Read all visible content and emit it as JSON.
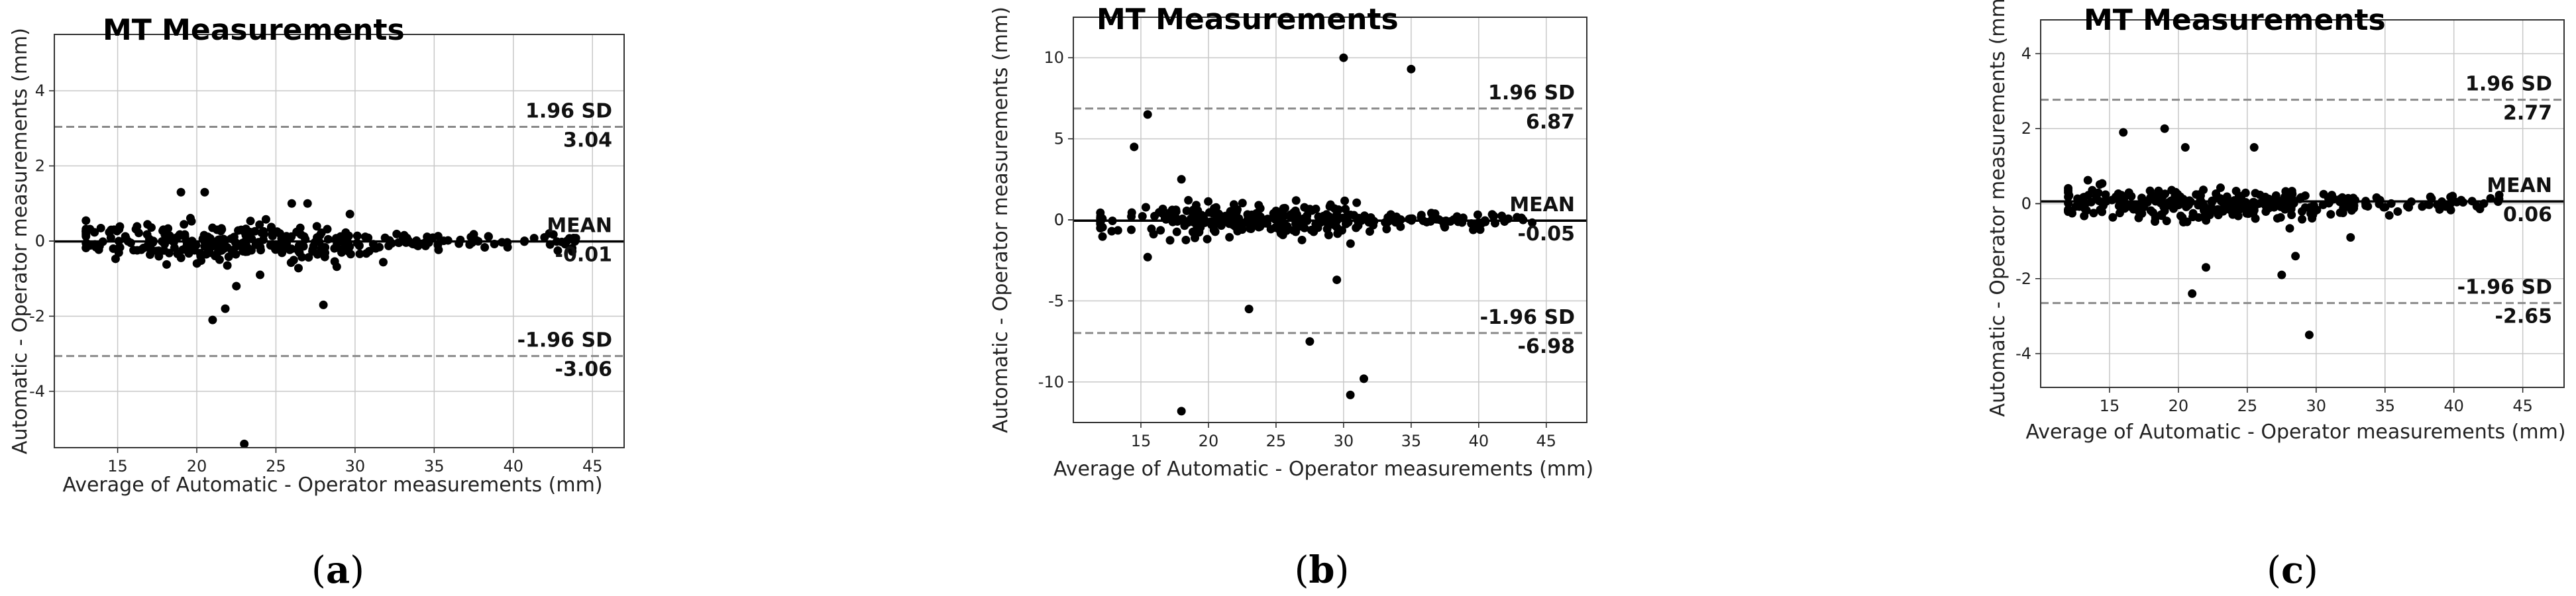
{
  "chart_data": [
    {
      "panel_label": "a",
      "type": "scatter",
      "title": "MT Measurements",
      "xlabel": "Average of Automatic - Operator measurements (mm)",
      "ylabel": "Automatic - Operator measurements (mm)",
      "xlim": [
        11,
        47
      ],
      "ylim": [
        -5.5,
        5.5
      ],
      "xticks": [
        15,
        20,
        25,
        30,
        35,
        40,
        45
      ],
      "yticks": [
        -4,
        -2,
        0,
        2,
        4
      ],
      "grid": true,
      "lines": [
        {
          "name": "upper",
          "y": 3.04,
          "style": "dashed",
          "label": "1.96 SD",
          "value_label": "3.04"
        },
        {
          "name": "mean",
          "y": -0.01,
          "style": "solid",
          "label": "MEAN",
          "value_label": "-0.01"
        },
        {
          "name": "lower",
          "y": -3.06,
          "style": "dashed",
          "label": "-1.96 SD",
          "value_label": "-3.06"
        }
      ],
      "outliers": [
        {
          "x": 19.0,
          "y": 1.3
        },
        {
          "x": 20.5,
          "y": 1.3
        },
        {
          "x": 26.0,
          "y": 1.0
        },
        {
          "x": 27.0,
          "y": 1.0
        },
        {
          "x": 21.0,
          "y": -2.1
        },
        {
          "x": 21.8,
          "y": -1.8
        },
        {
          "x": 28.0,
          "y": -1.7
        },
        {
          "x": 23.0,
          "y": -5.4
        },
        {
          "x": 22.5,
          "y": -1.2
        },
        {
          "x": 24.0,
          "y": -0.9
        }
      ],
      "cluster": {
        "x_range": [
          13,
          44
        ],
        "center_x": 23,
        "spread_y": 0.55,
        "count": 330,
        "seed": 11
      }
    },
    {
      "panel_label": "b",
      "type": "scatter",
      "title": "MT Measurements",
      "xlabel": "Average of Automatic - Operator measurements (mm)",
      "ylabel": "Automatic - Operator measurements (mm)",
      "xlim": [
        10,
        48
      ],
      "ylim": [
        -12.5,
        12.5
      ],
      "xticks": [
        15,
        20,
        25,
        30,
        35,
        40,
        45
      ],
      "yticks": [
        -10,
        -5,
        0,
        5,
        10
      ],
      "grid": true,
      "lines": [
        {
          "name": "upper",
          "y": 6.87,
          "style": "dashed",
          "label": "1.96 SD",
          "value_label": "6.87"
        },
        {
          "name": "mean",
          "y": -0.05,
          "style": "solid",
          "label": "MEAN",
          "value_label": "-0.05"
        },
        {
          "name": "lower",
          "y": -6.98,
          "style": "dashed",
          "label": "-1.96 SD",
          "value_label": "-6.98"
        }
      ],
      "outliers": [
        {
          "x": 30.0,
          "y": 10.0
        },
        {
          "x": 35.0,
          "y": 9.3
        },
        {
          "x": 15.5,
          "y": 6.5
        },
        {
          "x": 14.5,
          "y": 4.5
        },
        {
          "x": 18.0,
          "y": -11.8
        },
        {
          "x": 30.5,
          "y": -10.8
        },
        {
          "x": 31.5,
          "y": -9.8
        },
        {
          "x": 27.5,
          "y": -7.5
        },
        {
          "x": 23.0,
          "y": -5.5
        },
        {
          "x": 29.5,
          "y": -3.7
        },
        {
          "x": 15.5,
          "y": -2.3
        },
        {
          "x": 18.0,
          "y": 2.5
        }
      ],
      "cluster": {
        "x_range": [
          12,
          44
        ],
        "center_x": 24,
        "spread_y": 1.1,
        "count": 320,
        "seed": 23
      }
    },
    {
      "panel_label": "c",
      "type": "scatter",
      "title": "MT Measurements",
      "xlabel": "Average of Automatic - Operator measurements (mm)",
      "ylabel": "Automatic - Operator measurements (mm)",
      "xlim": [
        10,
        48
      ],
      "ylim": [
        -4.9,
        4.9
      ],
      "xticks": [
        15,
        20,
        25,
        30,
        35,
        40,
        45
      ],
      "yticks": [
        -4,
        -2,
        0,
        2,
        4
      ],
      "grid": true,
      "lines": [
        {
          "name": "upper",
          "y": 2.77,
          "style": "dashed",
          "label": "1.96 SD",
          "value_label": "2.77"
        },
        {
          "name": "mean",
          "y": 0.06,
          "style": "solid",
          "label": "MEAN",
          "value_label": "0.06"
        },
        {
          "name": "lower",
          "y": -2.65,
          "style": "dashed",
          "label": "-1.96 SD",
          "value_label": "-2.65"
        }
      ],
      "outliers": [
        {
          "x": 16.0,
          "y": 1.9
        },
        {
          "x": 19.0,
          "y": 2.0
        },
        {
          "x": 20.5,
          "y": 1.5
        },
        {
          "x": 25.5,
          "y": 1.5
        },
        {
          "x": 21.0,
          "y": -2.4
        },
        {
          "x": 29.5,
          "y": -3.5
        },
        {
          "x": 27.5,
          "y": -1.9
        },
        {
          "x": 22.0,
          "y": -1.7
        },
        {
          "x": 28.5,
          "y": -1.4
        },
        {
          "x": 32.5,
          "y": -0.9
        }
      ],
      "cluster": {
        "x_range": [
          12,
          44
        ],
        "center_x": 23,
        "spread_y": 0.5,
        "count": 320,
        "seed": 37
      }
    }
  ]
}
